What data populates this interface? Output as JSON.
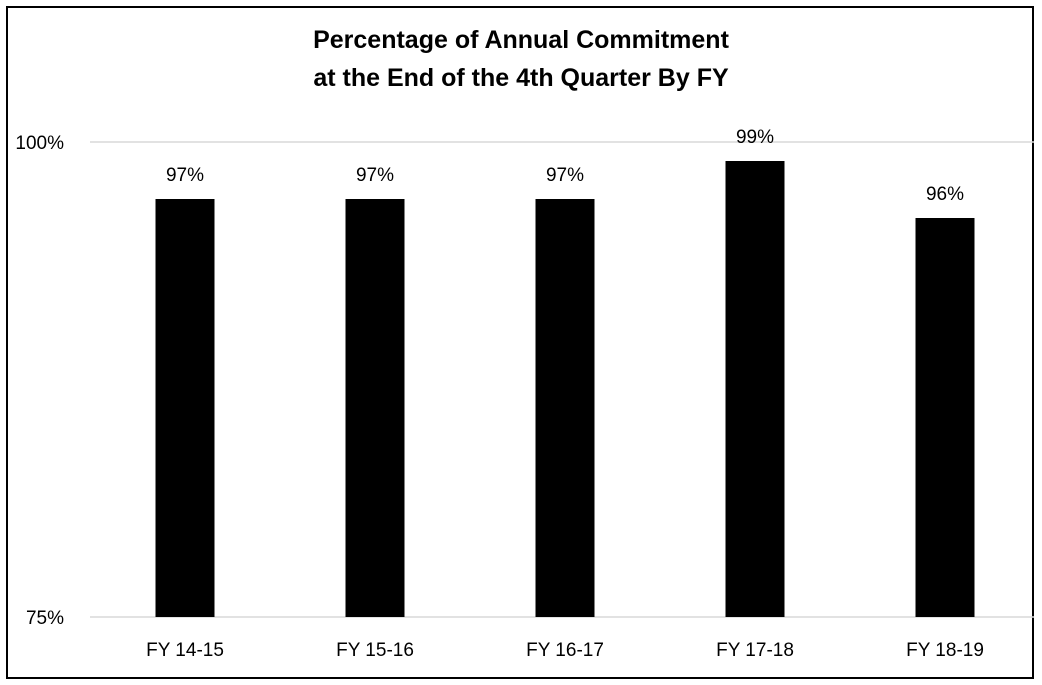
{
  "chart_data": {
    "type": "bar",
    "title_lines": [
      "Percentage of Annual Commitment",
      "at the End of the 4th Quarter By FY"
    ],
    "categories": [
      "FY 14-15",
      "FY 15-16",
      "FY 16-17",
      "FY 17-18",
      "FY 18-19"
    ],
    "values": [
      97,
      97,
      97,
      99,
      96
    ],
    "data_labels": [
      "97%",
      "97%",
      "97%",
      "99%",
      "96%"
    ],
    "ylim": [
      75,
      100
    ],
    "y_ticks": [
      {
        "value": 100,
        "label": "100%"
      },
      {
        "value": 75,
        "label": "75%"
      }
    ],
    "xlabel": "",
    "ylabel": "",
    "grid": true,
    "legend": "none",
    "colors": {
      "bar": "#000000",
      "gridline": "#d9d9d9",
      "text": "#000000",
      "border": "#000000"
    }
  }
}
